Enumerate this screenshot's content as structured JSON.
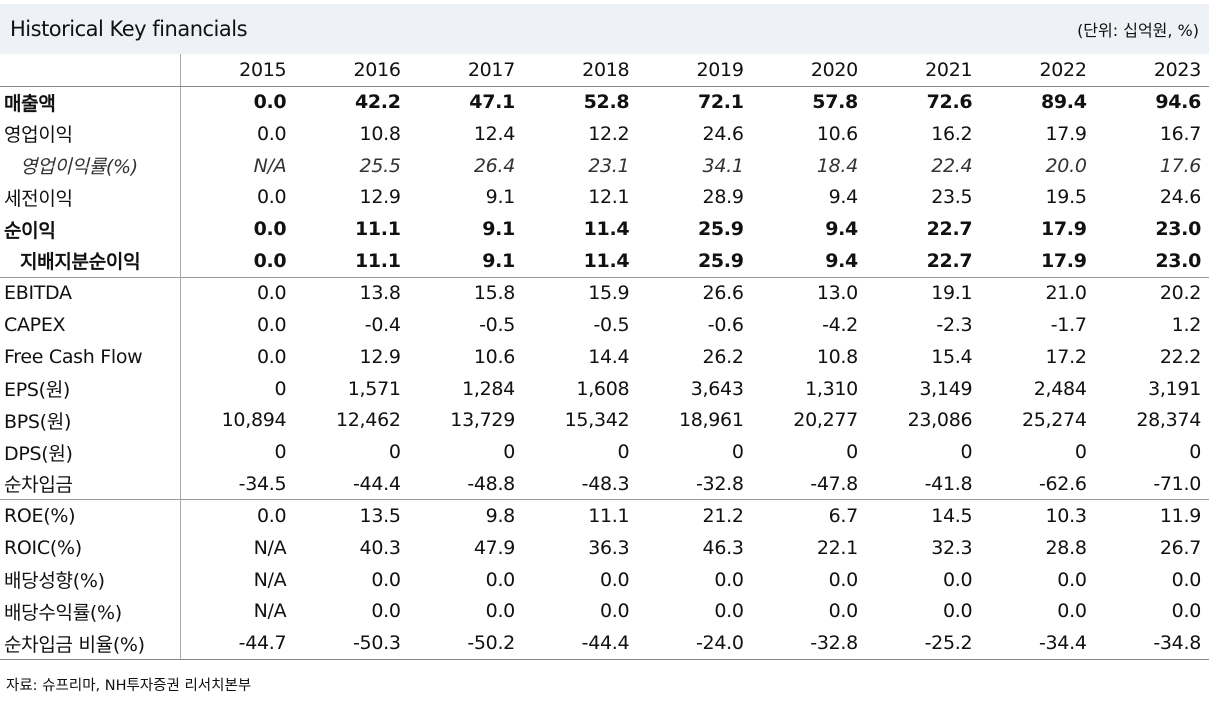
{
  "header": {
    "title": "Historical Key financials",
    "unit": "(단위: 십억원, %)"
  },
  "columns": [
    "2015",
    "2016",
    "2017",
    "2018",
    "2019",
    "2020",
    "2021",
    "2022",
    "2023"
  ],
  "rows": [
    {
      "label": "매출액",
      "style": "bold",
      "values": [
        "0.0",
        "42.2",
        "47.1",
        "52.8",
        "72.1",
        "57.8",
        "72.6",
        "89.4",
        "94.6"
      ]
    },
    {
      "label": "영업이익",
      "style": "",
      "values": [
        "0.0",
        "10.8",
        "12.4",
        "12.2",
        "24.6",
        "10.6",
        "16.2",
        "17.9",
        "16.7"
      ]
    },
    {
      "label": "영업이익률(%)",
      "style": "italic indent1",
      "values": [
        "N/A",
        "25.5",
        "26.4",
        "23.1",
        "34.1",
        "18.4",
        "22.4",
        "20.0",
        "17.6"
      ]
    },
    {
      "label": "세전이익",
      "style": "",
      "values": [
        "0.0",
        "12.9",
        "9.1",
        "12.1",
        "28.9",
        "9.4",
        "23.5",
        "19.5",
        "24.6"
      ]
    },
    {
      "label": "순이익",
      "style": "bold",
      "values": [
        "0.0",
        "11.1",
        "9.1",
        "11.4",
        "25.9",
        "9.4",
        "22.7",
        "17.9",
        "23.0"
      ]
    },
    {
      "label": "지배지분순이익",
      "style": "bold indent2",
      "values": [
        "0.0",
        "11.1",
        "9.1",
        "11.4",
        "25.9",
        "9.4",
        "22.7",
        "17.9",
        "23.0"
      ]
    },
    {
      "label": "EBITDA",
      "style": "sep",
      "values": [
        "0.0",
        "13.8",
        "15.8",
        "15.9",
        "26.6",
        "13.0",
        "19.1",
        "21.0",
        "20.2"
      ]
    },
    {
      "label": "CAPEX",
      "style": "",
      "values": [
        "0.0",
        "-0.4",
        "-0.5",
        "-0.5",
        "-0.6",
        "-4.2",
        "-2.3",
        "-1.7",
        "1.2"
      ]
    },
    {
      "label": "Free Cash Flow",
      "style": "",
      "values": [
        "0.0",
        "12.9",
        "10.6",
        "14.4",
        "26.2",
        "10.8",
        "15.4",
        "17.2",
        "22.2"
      ]
    },
    {
      "label": "EPS(원)",
      "style": "",
      "values": [
        "0",
        "1,571",
        "1,284",
        "1,608",
        "3,643",
        "1,310",
        "3,149",
        "2,484",
        "3,191"
      ]
    },
    {
      "label": "BPS(원)",
      "style": "",
      "values": [
        "10,894",
        "12,462",
        "13,729",
        "15,342",
        "18,961",
        "20,277",
        "23,086",
        "25,274",
        "28,374"
      ]
    },
    {
      "label": "DPS(원)",
      "style": "",
      "values": [
        "0",
        "0",
        "0",
        "0",
        "0",
        "0",
        "0",
        "0",
        "0"
      ]
    },
    {
      "label": "순차입금",
      "style": "",
      "values": [
        "-34.5",
        "-44.4",
        "-48.8",
        "-48.3",
        "-32.8",
        "-47.8",
        "-41.8",
        "-62.6",
        "-71.0"
      ]
    },
    {
      "label": "ROE(%)",
      "style": "sep",
      "values": [
        "0.0",
        "13.5",
        "9.8",
        "11.1",
        "21.2",
        "6.7",
        "14.5",
        "10.3",
        "11.9"
      ]
    },
    {
      "label": "ROIC(%)",
      "style": "",
      "values": [
        "N/A",
        "40.3",
        "47.9",
        "36.3",
        "46.3",
        "22.1",
        "32.3",
        "28.8",
        "26.7"
      ]
    },
    {
      "label": "배당성향(%)",
      "style": "",
      "values": [
        "N/A",
        "0.0",
        "0.0",
        "0.0",
        "0.0",
        "0.0",
        "0.0",
        "0.0",
        "0.0"
      ]
    },
    {
      "label": "배당수익률(%)",
      "style": "",
      "values": [
        "N/A",
        "0.0",
        "0.0",
        "0.0",
        "0.0",
        "0.0",
        "0.0",
        "0.0",
        "0.0"
      ]
    },
    {
      "label": "순차입금 비율(%)",
      "style": "last",
      "values": [
        "-44.7",
        "-50.3",
        "-50.2",
        "-44.4",
        "-24.0",
        "-32.8",
        "-25.2",
        "-34.4",
        "-34.8"
      ]
    }
  ],
  "source": "자료: 슈프리마, NH투자증권 리서치본부"
}
